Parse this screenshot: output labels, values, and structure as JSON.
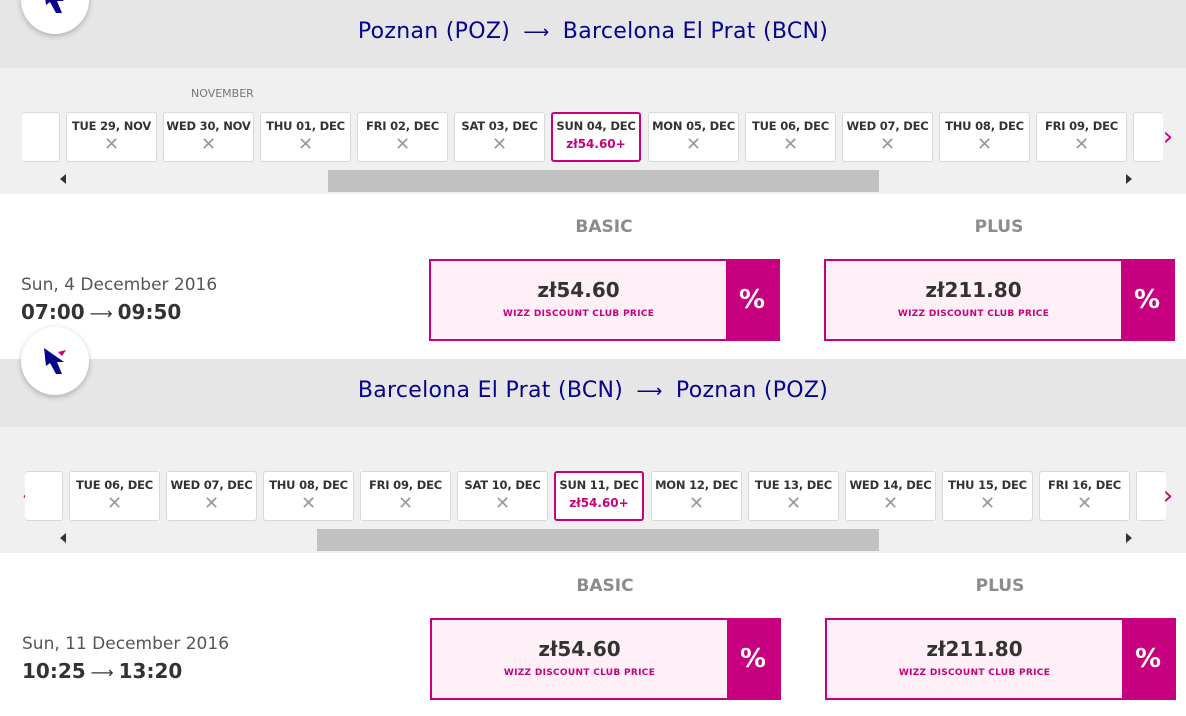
{
  "legs": [
    {
      "origin": "Poznan (POZ)",
      "arrow": "⟶",
      "destination": "Barcelona El Prat (BCN)",
      "month_label": "NOVEMBER",
      "dates": [
        {
          "label": "TUE 29, NOV",
          "available": false
        },
        {
          "label": "WED 30, NOV",
          "available": false
        },
        {
          "label": "THU 01, DEC",
          "available": false
        },
        {
          "label": "FRI 02, DEC",
          "available": false
        },
        {
          "label": "SAT 03, DEC",
          "available": false
        },
        {
          "label": "SUN 04, DEC",
          "available": true,
          "price": "zł54.60+",
          "selected": true
        },
        {
          "label": "MON 05, DEC",
          "available": false
        },
        {
          "label": "TUE 06, DEC",
          "available": false
        },
        {
          "label": "WED 07, DEC",
          "available": false
        },
        {
          "label": "THU 08, DEC",
          "available": false
        },
        {
          "label": "FRI 09, DEC",
          "available": false
        }
      ],
      "unavailable_mark": "✕",
      "scroll_thumb_fraction": [
        0.25,
        0.76
      ],
      "fare_labels": {
        "basic": "BASIC",
        "plus": "PLUS"
      },
      "flight_date": "Sun, 4 December 2016",
      "departure": "07:00",
      "time_arrow": "⟶",
      "arrival": "09:50",
      "fares": {
        "basic": {
          "price": "zł54.60",
          "note": "WIZZ DISCOUNT CLUB PRICE",
          "badge": "%"
        },
        "plus": {
          "price": "zł211.80",
          "note": "WIZZ DISCOUNT CLUB PRICE",
          "badge": "%"
        }
      }
    },
    {
      "origin": "Barcelona El Prat (BCN)",
      "arrow": "⟶",
      "destination": "Poznan (POZ)",
      "dates": [
        {
          "label": "TUE 06, DEC",
          "available": false
        },
        {
          "label": "WED 07, DEC",
          "available": false
        },
        {
          "label": "THU 08, DEC",
          "available": false
        },
        {
          "label": "FRI 09, DEC",
          "available": false
        },
        {
          "label": "SAT 10, DEC",
          "available": false
        },
        {
          "label": "SUN 11, DEC",
          "available": true,
          "price": "zł54.60+",
          "selected": true
        },
        {
          "label": "MON 12, DEC",
          "available": false
        },
        {
          "label": "TUE 13, DEC",
          "available": false
        },
        {
          "label": "WED 14, DEC",
          "available": false
        },
        {
          "label": "THU 15, DEC",
          "available": false
        },
        {
          "label": "FRI 16, DEC",
          "available": false
        }
      ],
      "unavailable_mark": "✕",
      "scroll_thumb_fraction": [
        0.24,
        0.76
      ],
      "fare_labels": {
        "basic": "BASIC",
        "plus": "PLUS"
      },
      "flight_date": "Sun, 11 December 2016",
      "departure": "10:25",
      "time_arrow": "⟶",
      "arrival": "13:20",
      "fares": {
        "basic": {
          "price": "zł54.60",
          "note": "WIZZ DISCOUNT CLUB PRICE",
          "badge": "%"
        },
        "plus": {
          "price": "zł211.80",
          "note": "WIZZ DISCOUNT CLUB PRICE",
          "badge": "%"
        }
      }
    }
  ],
  "icons": {
    "prev": "chevron-left-icon",
    "next": "chevron-right-icon",
    "logo": "airline-logo-icon",
    "unavailable": "unavailable-x-icon"
  },
  "colors": {
    "accent": "#c6007e",
    "brand_blue": "#06038d",
    "fare_bg": "#fff0f8",
    "header_bg": "#e6e6e6",
    "datebar_bg": "#f0f0f0"
  }
}
